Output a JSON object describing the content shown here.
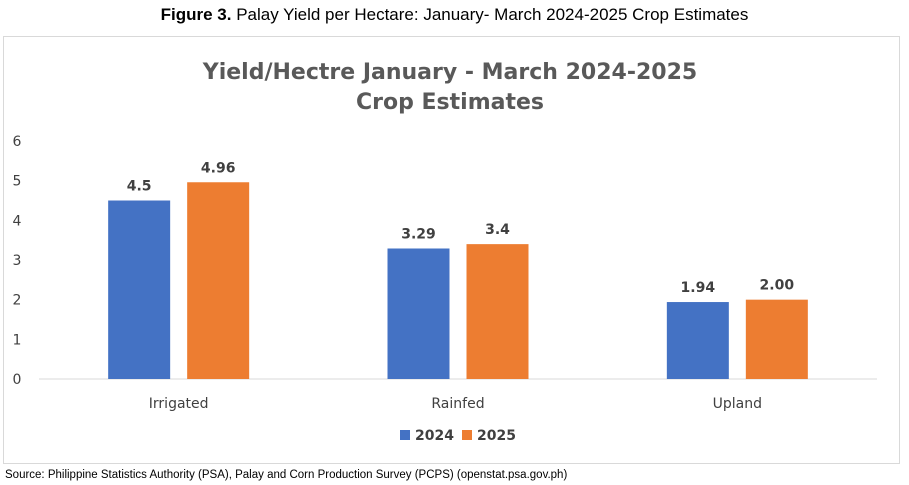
{
  "figure": {
    "label": "Figure 3.",
    "caption": "Palay Yield per Hectare: January- March 2024-2025 Crop Estimates"
  },
  "source": "Source:  Philippine Statistics Authority (PSA), Palay and Corn Production Survey (PCPS) (openstat.psa.gov.ph)",
  "chart_data": {
    "type": "bar",
    "title": [
      "Yield/Hectre January - March 2024-2025",
      "Crop Estimates"
    ],
    "categories": [
      "Irrigated",
      "Rainfed",
      "Upland"
    ],
    "series": [
      {
        "name": "2024",
        "color": "#4472c4",
        "values": [
          4.5,
          3.29,
          1.94
        ],
        "labels": [
          "4.5",
          "3.29",
          "1.94"
        ]
      },
      {
        "name": "2025",
        "color": "#ed7d31",
        "values": [
          4.96,
          3.4,
          2.0
        ],
        "labels": [
          "4.96",
          "3.4",
          "2.00"
        ]
      }
    ],
    "ylim": [
      0,
      6
    ],
    "yticks": [
      "0",
      "1",
      "2",
      "3",
      "4",
      "5",
      "6"
    ],
    "grid": false,
    "legend": "bottom",
    "colors": {
      "axis": "#d9d9d9",
      "title": "#595959",
      "text": "#404040"
    }
  }
}
